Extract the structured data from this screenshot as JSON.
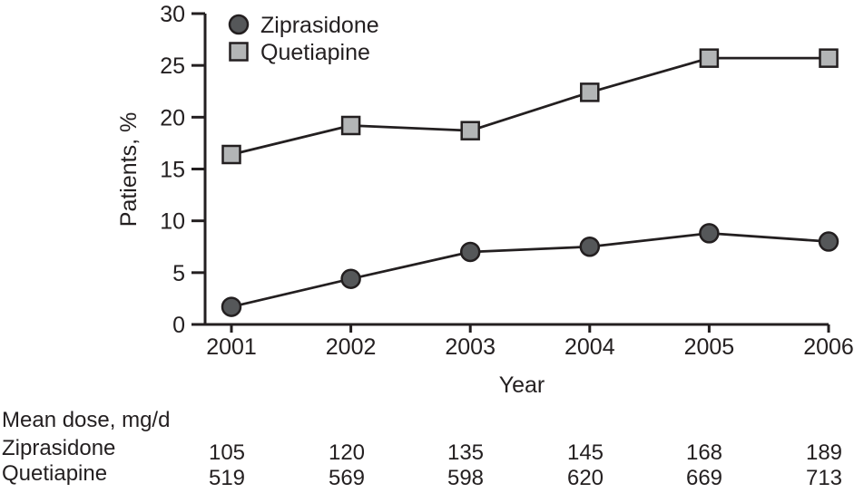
{
  "figure": {
    "background": "#ffffff",
    "text_color": "#231f20",
    "axis_color": "#231f20"
  },
  "chart_data": {
    "type": "line",
    "title": "",
    "xlabel": "Year",
    "ylabel": "Patients, %",
    "x": [
      "2001",
      "2002",
      "2003",
      "2004",
      "2005",
      "2006"
    ],
    "ylim": [
      0,
      30
    ],
    "ytick_step": 5,
    "yticks": [
      0,
      5,
      10,
      15,
      20,
      25,
      30
    ],
    "grid": false,
    "legend_position": "top-left-inside",
    "line_color": "#231f20",
    "series": [
      {
        "name": "Ziprasidone",
        "marker": "circle",
        "marker_fill": "#555759",
        "marker_stroke": "#231f20",
        "values": [
          1.7,
          4.4,
          7.0,
          7.5,
          8.8,
          8.0
        ]
      },
      {
        "name": "Quetiapine",
        "marker": "square",
        "marker_fill": "#b3b5b6",
        "marker_stroke": "#231f20",
        "values": [
          16.4,
          19.2,
          18.7,
          22.4,
          25.7,
          25.7
        ]
      }
    ]
  },
  "doses": {
    "header": "Mean dose, mg/d",
    "rows": [
      {
        "label": "Ziprasidone",
        "values": [
          "105",
          "120",
          "135",
          "145",
          "168",
          "189"
        ]
      },
      {
        "label": "Quetiapine",
        "values": [
          "519",
          "569",
          "598",
          "620",
          "669",
          "713"
        ]
      }
    ]
  }
}
